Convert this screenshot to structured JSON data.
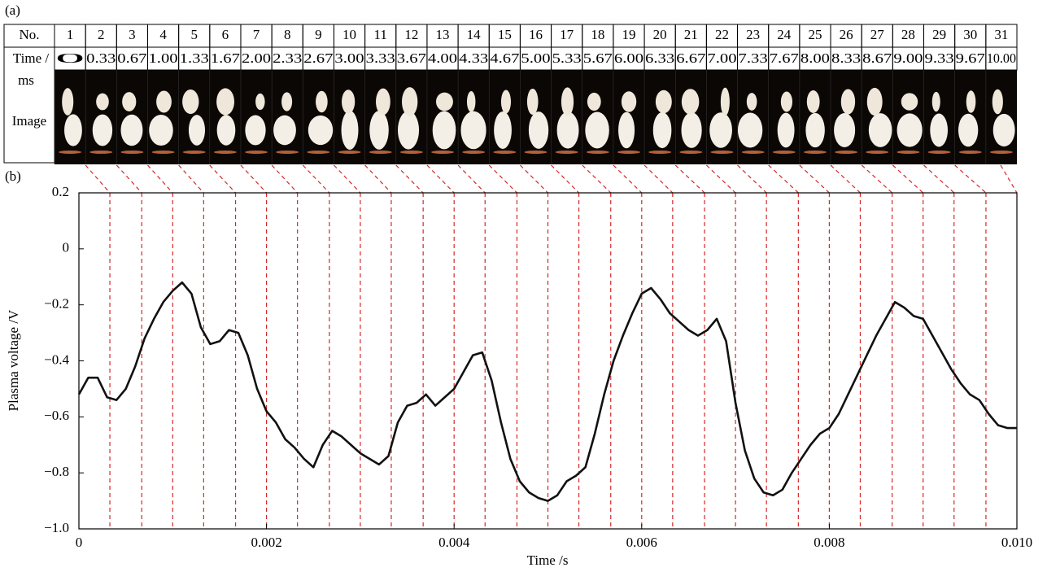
{
  "panel_a": {
    "label": "(a)",
    "row_no_label": "No.",
    "row_time_label": "Time /",
    "row_time_unit": "ms",
    "row_image_label": "Image",
    "numbers": [
      "1",
      "2",
      "3",
      "4",
      "5",
      "6",
      "7",
      "8",
      "9",
      "10",
      "11",
      "12",
      "13",
      "14",
      "15",
      "16",
      "17",
      "18",
      "19",
      "20",
      "21",
      "22",
      "23",
      "24",
      "25",
      "26",
      "27",
      "28",
      "29",
      "30",
      "31"
    ],
    "times": [
      "0",
      "0.33",
      "0.67",
      "1.00",
      "1.33",
      "1.67",
      "2.00",
      "2.33",
      "2.67",
      "3.00",
      "3.33",
      "3.67",
      "4.00",
      "4.33",
      "4.67",
      "5.00",
      "5.33",
      "5.67",
      "6.00",
      "6.33",
      "6.67",
      "7.00",
      "7.33",
      "7.67",
      "8.00",
      "8.33",
      "8.67",
      "9.00",
      "9.33",
      "9.67",
      "10.00"
    ]
  },
  "chart_data": {
    "type": "line",
    "label": "(b)",
    "x_label": "Time /s",
    "y_label": "Plasma voltage /V",
    "color": "#111111",
    "marker_color": "#d62728",
    "xlim": [
      0,
      0.01
    ],
    "ylim": [
      -1.0,
      0.2
    ],
    "xticks": [
      0,
      0.002,
      0.004,
      0.006,
      0.008,
      {
        "value": 0.01,
        "label": "0.010"
      }
    ],
    "yticks": [
      {
        "value": -1.0,
        "label": "−1.0"
      },
      {
        "value": -0.8,
        "label": "−0.8"
      },
      {
        "value": -0.6,
        "label": "−0.6"
      },
      {
        "value": -0.4,
        "label": "−0.4"
      },
      {
        "value": -0.2,
        "label": "−0.2"
      },
      0,
      0.2
    ],
    "frame_lines_x": [
      0.00033,
      0.00067,
      0.001,
      0.00133,
      0.00167,
      0.002,
      0.00233,
      0.00267,
      0.003,
      0.00333,
      0.00367,
      0.004,
      0.00433,
      0.00467,
      0.005,
      0.00533,
      0.00567,
      0.006,
      0.00633,
      0.00667,
      0.007,
      0.00733,
      0.00767,
      0.008,
      0.00833,
      0.00867,
      0.009,
      0.00933,
      0.00967
    ],
    "x": [
      0,
      0.0001,
      0.0002,
      0.0003,
      0.0004,
      0.0005,
      0.0006,
      0.0007,
      0.0008,
      0.0009,
      0.001,
      0.0011,
      0.0012,
      0.0013,
      0.0014,
      0.0015,
      0.0016,
      0.0017,
      0.0018,
      0.0019,
      0.002,
      0.0021,
      0.0022,
      0.0023,
      0.0024,
      0.0025,
      0.0026,
      0.0027,
      0.0028,
      0.0029,
      0.003,
      0.0031,
      0.0032,
      0.0033,
      0.0034,
      0.0035,
      0.0036,
      0.0037,
      0.0038,
      0.0039,
      0.004,
      0.0041,
      0.0042,
      0.0043,
      0.0044,
      0.0045,
      0.0046,
      0.0047,
      0.0048,
      0.0049,
      0.005,
      0.0051,
      0.0052,
      0.0053,
      0.0054,
      0.0055,
      0.0056,
      0.0057,
      0.0058,
      0.0059,
      0.006,
      0.0061,
      0.0062,
      0.0063,
      0.0064,
      0.0065,
      0.0066,
      0.0067,
      0.0068,
      0.0069,
      0.007,
      0.0071,
      0.0072,
      0.0073,
      0.0074,
      0.0075,
      0.0076,
      0.0077,
      0.0078,
      0.0079,
      0.008,
      0.0081,
      0.0082,
      0.0083,
      0.0084,
      0.0085,
      0.0086,
      0.0087,
      0.0088,
      0.0089,
      0.009,
      0.0091,
      0.0092,
      0.0093,
      0.0094,
      0.0095,
      0.0096,
      0.0097,
      0.0098,
      0.0099,
      0.01
    ],
    "values": [
      -0.52,
      -0.46,
      -0.46,
      -0.53,
      -0.54,
      -0.5,
      -0.42,
      -0.32,
      -0.25,
      -0.19,
      -0.15,
      -0.12,
      -0.16,
      -0.28,
      -0.34,
      -0.33,
      -0.29,
      -0.3,
      -0.38,
      -0.5,
      -0.58,
      -0.62,
      -0.68,
      -0.71,
      -0.75,
      -0.78,
      -0.7,
      -0.65,
      -0.67,
      -0.7,
      -0.73,
      -0.75,
      -0.77,
      -0.74,
      -0.62,
      -0.56,
      -0.55,
      -0.52,
      -0.56,
      -0.53,
      -0.5,
      -0.44,
      -0.38,
      -0.37,
      -0.47,
      -0.62,
      -0.75,
      -0.83,
      -0.87,
      -0.89,
      -0.9,
      -0.88,
      -0.83,
      -0.81,
      -0.78,
      -0.66,
      -0.52,
      -0.4,
      -0.31,
      -0.23,
      -0.16,
      -0.14,
      -0.18,
      -0.23,
      -0.26,
      -0.29,
      -0.31,
      -0.29,
      -0.25,
      -0.33,
      -0.55,
      -0.72,
      -0.82,
      -0.87,
      -0.88,
      -0.86,
      -0.8,
      -0.75,
      -0.7,
      -0.66,
      -0.64,
      -0.59,
      -0.52,
      -0.45,
      -0.38,
      -0.31,
      -0.25,
      -0.19,
      -0.21,
      -0.24,
      -0.25,
      -0.31,
      -0.37,
      -0.43,
      -0.48,
      -0.52,
      -0.54,
      -0.59,
      -0.63,
      -0.64,
      -0.64
    ]
  }
}
